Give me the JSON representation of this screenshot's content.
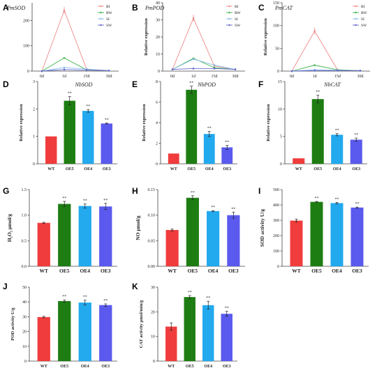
{
  "chart_data": [
    {
      "panel": "A",
      "type": "line",
      "title": "PmSOD",
      "xlabel": "",
      "ylabel": "",
      "categories": [
        "0d",
        "1d",
        "15d",
        "30d"
      ],
      "yticks": [
        0,
        100,
        200
      ],
      "ylim": [
        0,
        270
      ],
      "legend": "top-right",
      "series": [
        {
          "name": "RI",
          "color": "#f08a8a",
          "values": [
            0,
            240,
            8,
            2
          ]
        },
        {
          "name": "RW",
          "color": "#3cb44b",
          "values": [
            0,
            52,
            5,
            2
          ]
        },
        {
          "name": "SI",
          "color": "#88bbee",
          "values": [
            0,
            14,
            8,
            2
          ]
        },
        {
          "name": "SW",
          "color": "#6666cc",
          "values": [
            0,
            6,
            4,
            2
          ]
        }
      ]
    },
    {
      "panel": "B",
      "type": "line",
      "title": "PmPOD",
      "xlabel": "",
      "ylabel": "Relative expression",
      "categories": [
        "0d",
        "1d",
        "15d",
        "30d"
      ],
      "yticks": [
        0,
        10,
        20,
        30,
        40
      ],
      "ylim": [
        0,
        40
      ],
      "legend": "top-right",
      "series": [
        {
          "name": "RI",
          "color": "#f08a8a",
          "values": [
            1,
            31,
            3,
            1
          ]
        },
        {
          "name": "RW",
          "color": "#3cb44b",
          "values": [
            1,
            7.5,
            2,
            1
          ]
        },
        {
          "name": "SI",
          "color": "#88bbee",
          "values": [
            1,
            7,
            3.5,
            1
          ]
        },
        {
          "name": "SW",
          "color": "#6666cc",
          "values": [
            1,
            1.5,
            1.5,
            1
          ]
        }
      ]
    },
    {
      "panel": "C",
      "type": "line",
      "title": "PmCAT",
      "xlabel": "",
      "ylabel": "Relative expression",
      "categories": [
        "0d",
        "1d",
        "15d",
        "30d"
      ],
      "yticks": [
        0,
        50,
        100,
        150
      ],
      "ylim": [
        0,
        150
      ],
      "legend": "top-right",
      "series": [
        {
          "name": "RI",
          "color": "#f08a8a",
          "values": [
            0,
            88,
            3,
            1
          ]
        },
        {
          "name": "RW",
          "color": "#3cb44b",
          "values": [
            0,
            13,
            3,
            1
          ]
        },
        {
          "name": "SI",
          "color": "#88bbee",
          "values": [
            0,
            3,
            2,
            1
          ]
        },
        {
          "name": "SW",
          "color": "#6666cc",
          "values": [
            0,
            1,
            1,
            1
          ]
        }
      ]
    },
    {
      "panel": "D",
      "type": "bar",
      "title": "NbSOD",
      "xlabel": "",
      "ylabel": "Relative expression",
      "categories": [
        "WT",
        "OE5",
        "OE4",
        "OE3"
      ],
      "values": [
        1.0,
        2.3,
        1.93,
        1.47
      ],
      "errors": [
        0,
        0.15,
        0.05,
        0.02
      ],
      "significance": [
        "",
        "**",
        "**",
        "**"
      ],
      "yticks": [
        0,
        1,
        2,
        3
      ],
      "ylim": [
        0,
        3
      ]
    },
    {
      "panel": "E",
      "type": "bar",
      "title": "NbPOD",
      "xlabel": "",
      "ylabel": "Relative expression",
      "categories": [
        "WT",
        "OE5",
        "OE4",
        "OE3"
      ],
      "values": [
        1.0,
        7.2,
        2.9,
        1.6
      ],
      "errors": [
        0,
        0.35,
        0.25,
        0.2
      ],
      "significance": [
        "",
        "**",
        "**",
        "**"
      ],
      "yticks": [
        0,
        2,
        4,
        6,
        8
      ],
      "ylim": [
        0,
        8
      ]
    },
    {
      "panel": "F",
      "type": "bar",
      "title": "NbCAT",
      "xlabel": "",
      "ylabel": "Relative expression",
      "categories": [
        "WT",
        "OE5",
        "OE4",
        "OE3"
      ],
      "values": [
        1.0,
        11.8,
        5.3,
        4.4
      ],
      "errors": [
        0,
        0.7,
        0.2,
        0.3
      ],
      "significance": [
        "",
        "**",
        "**",
        "**"
      ],
      "yticks": [
        0,
        5,
        10,
        15
      ],
      "ylim": [
        0,
        15
      ]
    },
    {
      "panel": "G",
      "type": "bar",
      "title": "",
      "xlabel": "",
      "ylabel": "H₂O₂ μmol/g",
      "categories": [
        "WT",
        "OE5",
        "OE4",
        "OE3"
      ],
      "values": [
        0.85,
        1.22,
        1.18,
        1.17
      ],
      "errors": [
        0.01,
        0.05,
        0.04,
        0.06
      ],
      "significance": [
        "",
        "**",
        "**",
        "**"
      ],
      "yticks": [
        0.0,
        0.5,
        1.0,
        1.5
      ],
      "ylim": [
        0,
        1.5
      ]
    },
    {
      "panel": "H",
      "type": "bar",
      "title": "",
      "xlabel": "",
      "ylabel": "NO μmol/g",
      "categories": [
        "WT",
        "OE5",
        "OE4",
        "OE3"
      ],
      "values": [
        0.071,
        0.134,
        0.108,
        0.1
      ],
      "errors": [
        0.002,
        0.004,
        0.001,
        0.006
      ],
      "significance": [
        "",
        "**",
        "**",
        "**"
      ],
      "yticks": [
        0.0,
        0.05,
        0.1,
        0.15
      ],
      "ylim": [
        0,
        0.15
      ]
    },
    {
      "panel": "I",
      "type": "bar",
      "title": "",
      "xlabel": "",
      "ylabel": "SOD activity U/g",
      "categories": [
        "WT",
        "OE5",
        "OE4",
        "OE3"
      ],
      "values": [
        298,
        420,
        412,
        383
      ],
      "errors": [
        10,
        3,
        4,
        3
      ],
      "significance": [
        "",
        "**",
        "**",
        "**"
      ],
      "yticks": [
        0,
        100,
        200,
        300,
        400,
        500
      ],
      "ylim": [
        0,
        500
      ]
    },
    {
      "panel": "J",
      "type": "bar",
      "title": "",
      "xlabel": "",
      "ylabel": "POD activity U/g",
      "categories": [
        "WT",
        "OE5",
        "OE4",
        "OE3"
      ],
      "values": [
        29.8,
        40.6,
        39.6,
        37.9
      ],
      "errors": [
        0.5,
        0.8,
        1.6,
        0.8
      ],
      "significance": [
        "",
        "**",
        "**",
        "**"
      ],
      "yticks": [
        0,
        10,
        20,
        30,
        40,
        50
      ],
      "ylim": [
        0,
        50
      ]
    },
    {
      "panel": "K",
      "type": "bar",
      "title": "",
      "xlabel": "",
      "ylabel": "CAT activity μmol/min/g",
      "categories": [
        "WT",
        "OE5",
        "OE4",
        "OE3"
      ],
      "values": [
        14,
        26,
        22.7,
        19.2
      ],
      "errors": [
        1.5,
        0.6,
        1.6,
        1.0
      ],
      "significance": [
        "",
        "**",
        "**",
        "**"
      ],
      "yticks": [
        0,
        10,
        20,
        30
      ],
      "ylim": [
        0,
        30
      ]
    }
  ],
  "bar_colors": [
    "#f03c3c",
    "#1e7d12",
    "#22a9ee",
    "#5a5aee"
  ]
}
